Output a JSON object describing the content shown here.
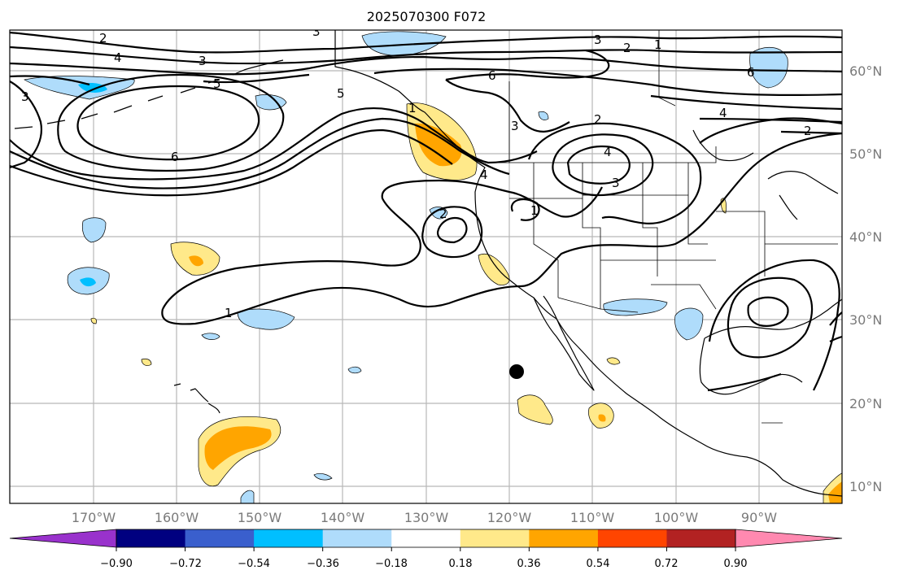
{
  "title": "2025070300 F072",
  "colors": {
    "below_min": "#9932cc",
    "bins": [
      "#000080",
      "#3a5fcd",
      "#00bfff",
      "#afdcfb",
      "#ffffff",
      "#ffe98a",
      "#ffa500",
      "#ff4500",
      "#b22222"
    ],
    "above_max": "#ff89b0",
    "light_blue": "#afdcfb",
    "mid_blue": "#00bfff",
    "light_yellow": "#ffe98a",
    "orange": "#ffa500"
  },
  "map": {
    "lon_labels": [
      "170°W",
      "160°W",
      "150°W",
      "140°W",
      "130°W",
      "120°W",
      "110°W",
      "100°W",
      "90°W"
    ],
    "lat_labels": [
      "60°N",
      "50°N",
      "40°N",
      "30°N",
      "20°N",
      "10°N"
    ],
    "contour_labels": [
      "2",
      "3",
      "4",
      "5",
      "6",
      "3",
      "5",
      "6",
      "3",
      "3",
      "2",
      "1",
      "4",
      "6",
      "2",
      "4",
      "4",
      "3",
      "2",
      "1",
      "2",
      "1",
      "1",
      "3"
    ],
    "marker": "black-dot"
  },
  "colorbar": {
    "levels": [
      "−0.90",
      "−0.72",
      "−0.54",
      "−0.36",
      "−0.18",
      "0.18",
      "0.36",
      "0.54",
      "0.72",
      "0.90"
    ],
    "extend": "both"
  }
}
